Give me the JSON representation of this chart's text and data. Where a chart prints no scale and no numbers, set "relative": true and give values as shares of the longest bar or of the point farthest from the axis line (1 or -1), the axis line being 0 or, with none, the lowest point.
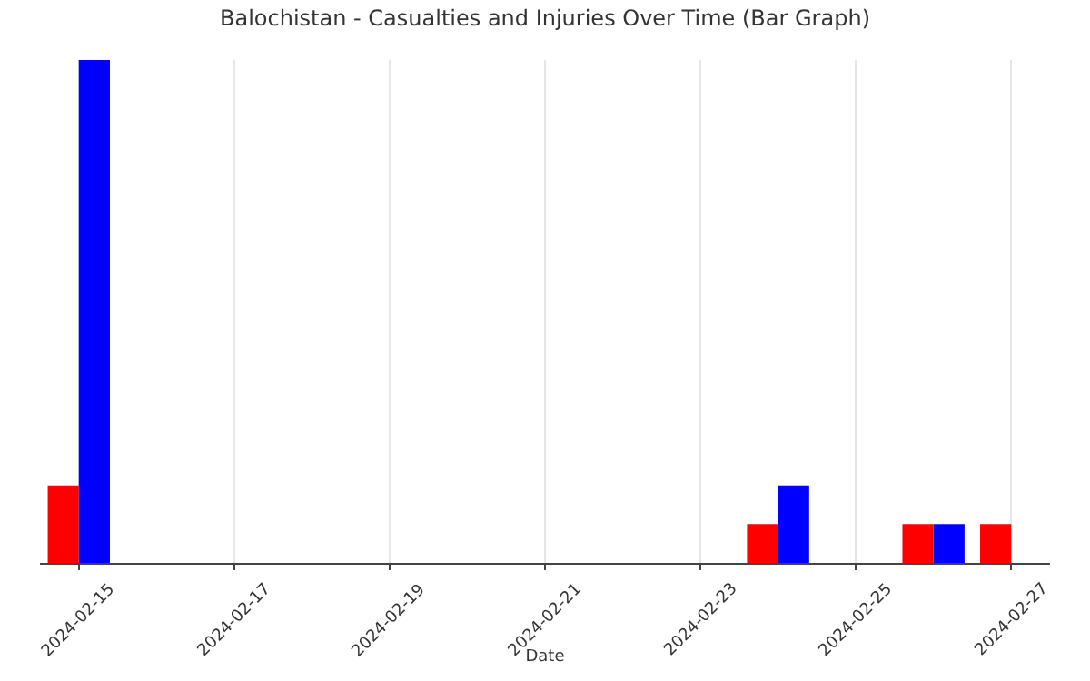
{
  "chart_data": {
    "type": "bar",
    "title": "Balochistan - Casualties and Injuries Over Time (Bar Graph)",
    "xlabel": "Date",
    "relative": true,
    "categories": [
      "2024-02-15",
      null,
      "2024-02-17",
      null,
      "2024-02-19",
      null,
      "2024-02-21",
      null,
      "2024-02-23",
      null,
      "2024-02-25",
      null,
      "2024-02-27"
    ],
    "series": [
      {
        "color": "#ff0000",
        "values": [
          0.154,
          null,
          null,
          null,
          null,
          null,
          null,
          null,
          null,
          0.077,
          null,
          0.077,
          0.077
        ]
      },
      {
        "color": "#0000ff",
        "values": [
          1,
          null,
          null,
          null,
          null,
          null,
          null,
          null,
          null,
          0.154,
          null,
          0.077,
          null
        ]
      }
    ],
    "grid": "x"
  }
}
